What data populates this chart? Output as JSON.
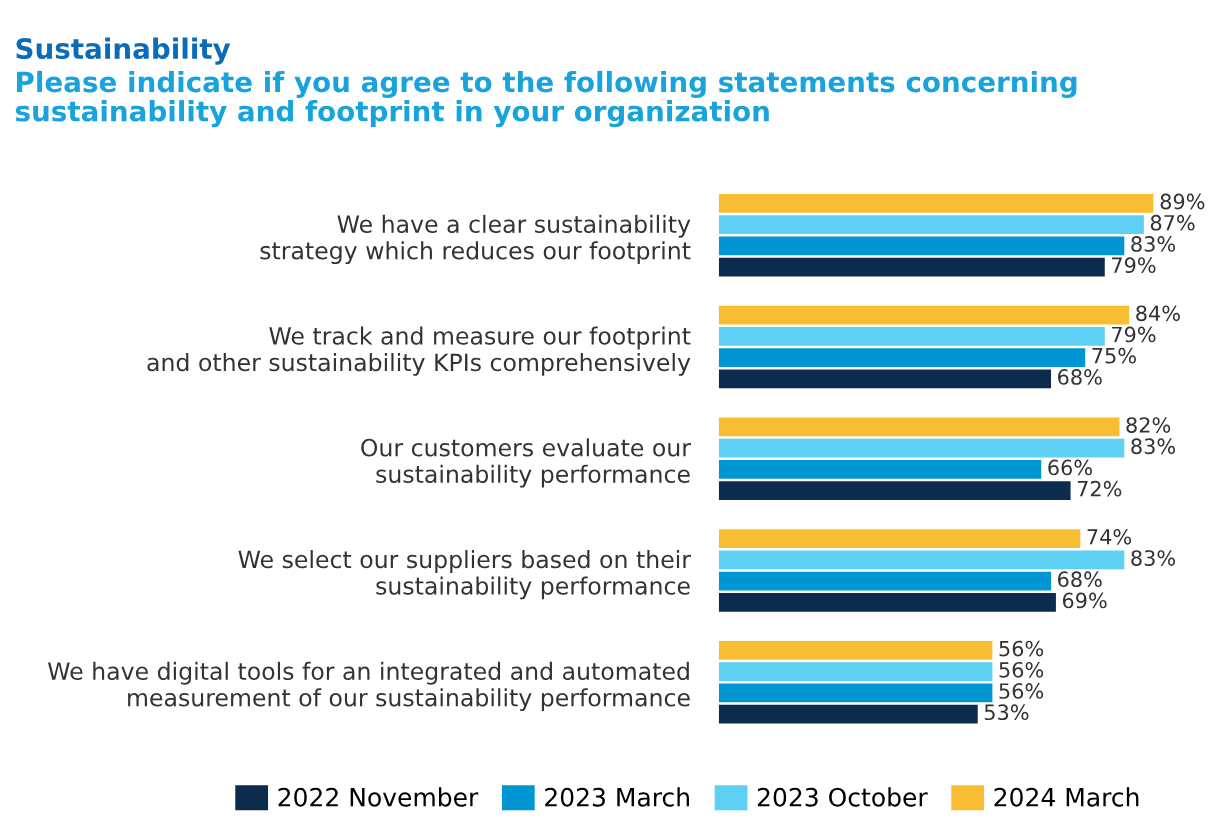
{
  "chart_data": {
    "type": "bar",
    "orientation": "horizontal",
    "title": "Sustainability",
    "subtitle": "Please indicate if you agree to the following statements concerning\nsustainability and footprint in your organization",
    "categories": [
      "We have a clear sustainability\nstrategy which reduces our footprint",
      "We track and measure our footprint\nand other sustainability KPIs comprehensively",
      "Our customers evaluate our\nsustainability performance",
      "We select our suppliers based on their\nsustainability performance",
      "We have digital tools for an integrated and automated\nmeasurement of our sustainability performance"
    ],
    "series": [
      {
        "name": "2022 November",
        "color": "#0b2c4d",
        "values": [
          79,
          68,
          72,
          69,
          53
        ],
        "value_labels": [
          "79%",
          "68%",
          "72%",
          "69%",
          "53%"
        ]
      },
      {
        "name": "2023 March",
        "color": "#0095d3",
        "values": [
          83,
          75,
          66,
          68,
          56
        ],
        "value_labels": [
          "83%",
          "75%",
          "66%",
          "68%",
          "56%"
        ]
      },
      {
        "name": "2023 October",
        "color": "#5ed0f4",
        "values": [
          87,
          79,
          83,
          83,
          56
        ],
        "value_labels": [
          "87%",
          "79%",
          "83%",
          "83%",
          "56%"
        ]
      },
      {
        "name": "2024 March",
        "color": "#f9bd33",
        "values": [
          89,
          84,
          82,
          74,
          56
        ],
        "value_labels": [
          "89%",
          "84%",
          "82%",
          "74%",
          "56%"
        ]
      }
    ],
    "legend": "bottom",
    "grid": false,
    "tick_labels": "y"
  }
}
